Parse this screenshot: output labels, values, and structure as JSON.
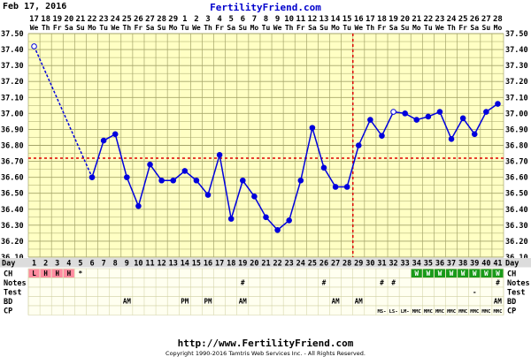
{
  "header": {
    "date": "Feb 17, 2016",
    "site": "FertilityFriend.com"
  },
  "footer": {
    "url": "http://www.FertilityFriend.com",
    "copyright": "Copyright 1990-2016 Tamtris Web Services Inc. - All Rights Reserved."
  },
  "colors": {
    "background": "#ffffc4",
    "grid": "#a5a56a",
    "line": "#0000dd",
    "coverline": "#dd0000",
    "period": "#ff8ca0",
    "cm_fertile": "#1a9a1a",
    "row_label_bg": "#dcdcdc"
  },
  "chart_data": {
    "type": "line",
    "dates": [
      "17",
      "18",
      "19",
      "20",
      "21",
      "22",
      "23",
      "24",
      "25",
      "26",
      "27",
      "28",
      "29",
      "1",
      "2",
      "3",
      "4",
      "5",
      "6",
      "7",
      "8",
      "9",
      "10",
      "11",
      "12",
      "13",
      "14",
      "15",
      "16",
      "17",
      "18",
      "19",
      "20",
      "21",
      "22",
      "23",
      "24",
      "25",
      "26",
      "27",
      "28"
    ],
    "weekdays": [
      "We",
      "Th",
      "Fr",
      "Sa",
      "Su",
      "Mo",
      "Tu",
      "We",
      "Th",
      "Fr",
      "Sa",
      "Su",
      "Mo",
      "Tu",
      "We",
      "Th",
      "Fr",
      "Sa",
      "Su",
      "Mo",
      "Tu",
      "We",
      "Th",
      "Fr",
      "Sa",
      "Su",
      "Mo",
      "Tu",
      "We",
      "Th",
      "Fr",
      "Sa",
      "Su",
      "Mo",
      "Tu",
      "We",
      "Th",
      "Fr",
      "Sa",
      "Su",
      "Mo"
    ],
    "cycle_days": [
      1,
      2,
      3,
      4,
      5,
      6,
      7,
      8,
      9,
      10,
      11,
      12,
      13,
      14,
      15,
      16,
      17,
      18,
      19,
      20,
      21,
      22,
      23,
      24,
      25,
      26,
      27,
      28,
      29,
      30,
      31,
      32,
      33,
      34,
      35,
      36,
      37,
      38,
      39,
      40,
      41
    ],
    "temperatures": [
      37.42,
      null,
      null,
      null,
      null,
      36.6,
      36.83,
      36.87,
      36.6,
      36.42,
      36.68,
      36.58,
      36.58,
      36.64,
      36.58,
      36.49,
      36.74,
      36.34,
      36.58,
      36.48,
      36.35,
      36.27,
      36.33,
      36.58,
      36.91,
      36.66,
      36.54,
      36.54,
      36.8,
      36.96,
      36.86,
      37.01,
      37.0,
      36.96,
      36.98,
      37.01,
      36.84,
      36.97,
      36.87,
      37.01,
      37.06
    ],
    "open_point_days": [
      1,
      32
    ],
    "coverline": 36.72,
    "ovulation_day": 28,
    "y_min": 36.1,
    "y_max": 37.5,
    "y_step": 0.1,
    "y_ticks": [
      "36.10",
      "36.20",
      "36.30",
      "36.40",
      "36.50",
      "36.60",
      "36.70",
      "36.80",
      "36.90",
      "37.00",
      "37.10",
      "37.20",
      "37.30",
      "37.40",
      "37.50"
    ],
    "x_label": "Day",
    "rows": {
      "CH": [
        "L",
        "H",
        "H",
        "H",
        "*",
        "",
        "",
        "",
        "",
        "",
        "",
        "",
        "",
        "",
        "",
        "",
        "",
        "",
        "",
        "",
        "",
        "",
        "",
        "",
        "",
        "",
        "",
        "",
        "",
        "",
        "",
        "",
        "",
        "W",
        "W",
        "W",
        "W",
        "W",
        "W",
        "W",
        "W"
      ],
      "Notes": [
        "",
        "",
        "",
        "",
        "",
        "",
        "",
        "",
        "",
        "",
        "",
        "",
        "",
        "",
        "",
        "",
        "",
        "",
        "#",
        "",
        "",
        "",
        "",
        "",
        "",
        "#",
        "",
        "",
        "",
        "",
        "#",
        "#",
        "",
        "",
        "",
        "",
        "",
        "",
        "",
        "",
        "#"
      ],
      "Test": [
        "",
        "",
        "",
        "",
        "",
        "",
        "",
        "",
        "",
        "",
        "",
        "",
        "",
        "",
        "",
        "",
        "",
        "",
        "",
        "",
        "",
        "",
        "",
        "",
        "",
        "",
        "",
        "",
        "",
        "",
        "",
        "",
        "",
        "",
        "",
        "",
        "",
        "",
        "-",
        "",
        ""
      ],
      "BD": [
        "",
        "",
        "",
        "",
        "",
        "",
        "",
        "",
        "AM",
        "",
        "",
        "",
        "",
        "PM",
        "",
        "PM",
        "",
        "",
        "AM",
        "",
        "",
        "",
        "",
        "",
        "",
        "",
        "AM",
        "",
        "AM",
        "",
        "",
        "",
        "",
        "",
        "",
        "",
        "",
        "",
        "",
        "",
        "AM"
      ],
      "CP": [
        "",
        "",
        "",
        "",
        "",
        "",
        "",
        "",
        "",
        "",
        "",
        "",
        "",
        "",
        "",
        "",
        "",
        "",
        "",
        "",
        "",
        "",
        "",
        "",
        "",
        "",
        "",
        "",
        "",
        "",
        "MS-",
        "LS-",
        "LM-",
        "MMC",
        "MMC",
        "MMC",
        "MMC",
        "MMC",
        "MMC",
        "MMC",
        "MMC"
      ]
    },
    "row_labels": [
      "CH",
      "Notes",
      "Test",
      "BD",
      "CP"
    ]
  }
}
